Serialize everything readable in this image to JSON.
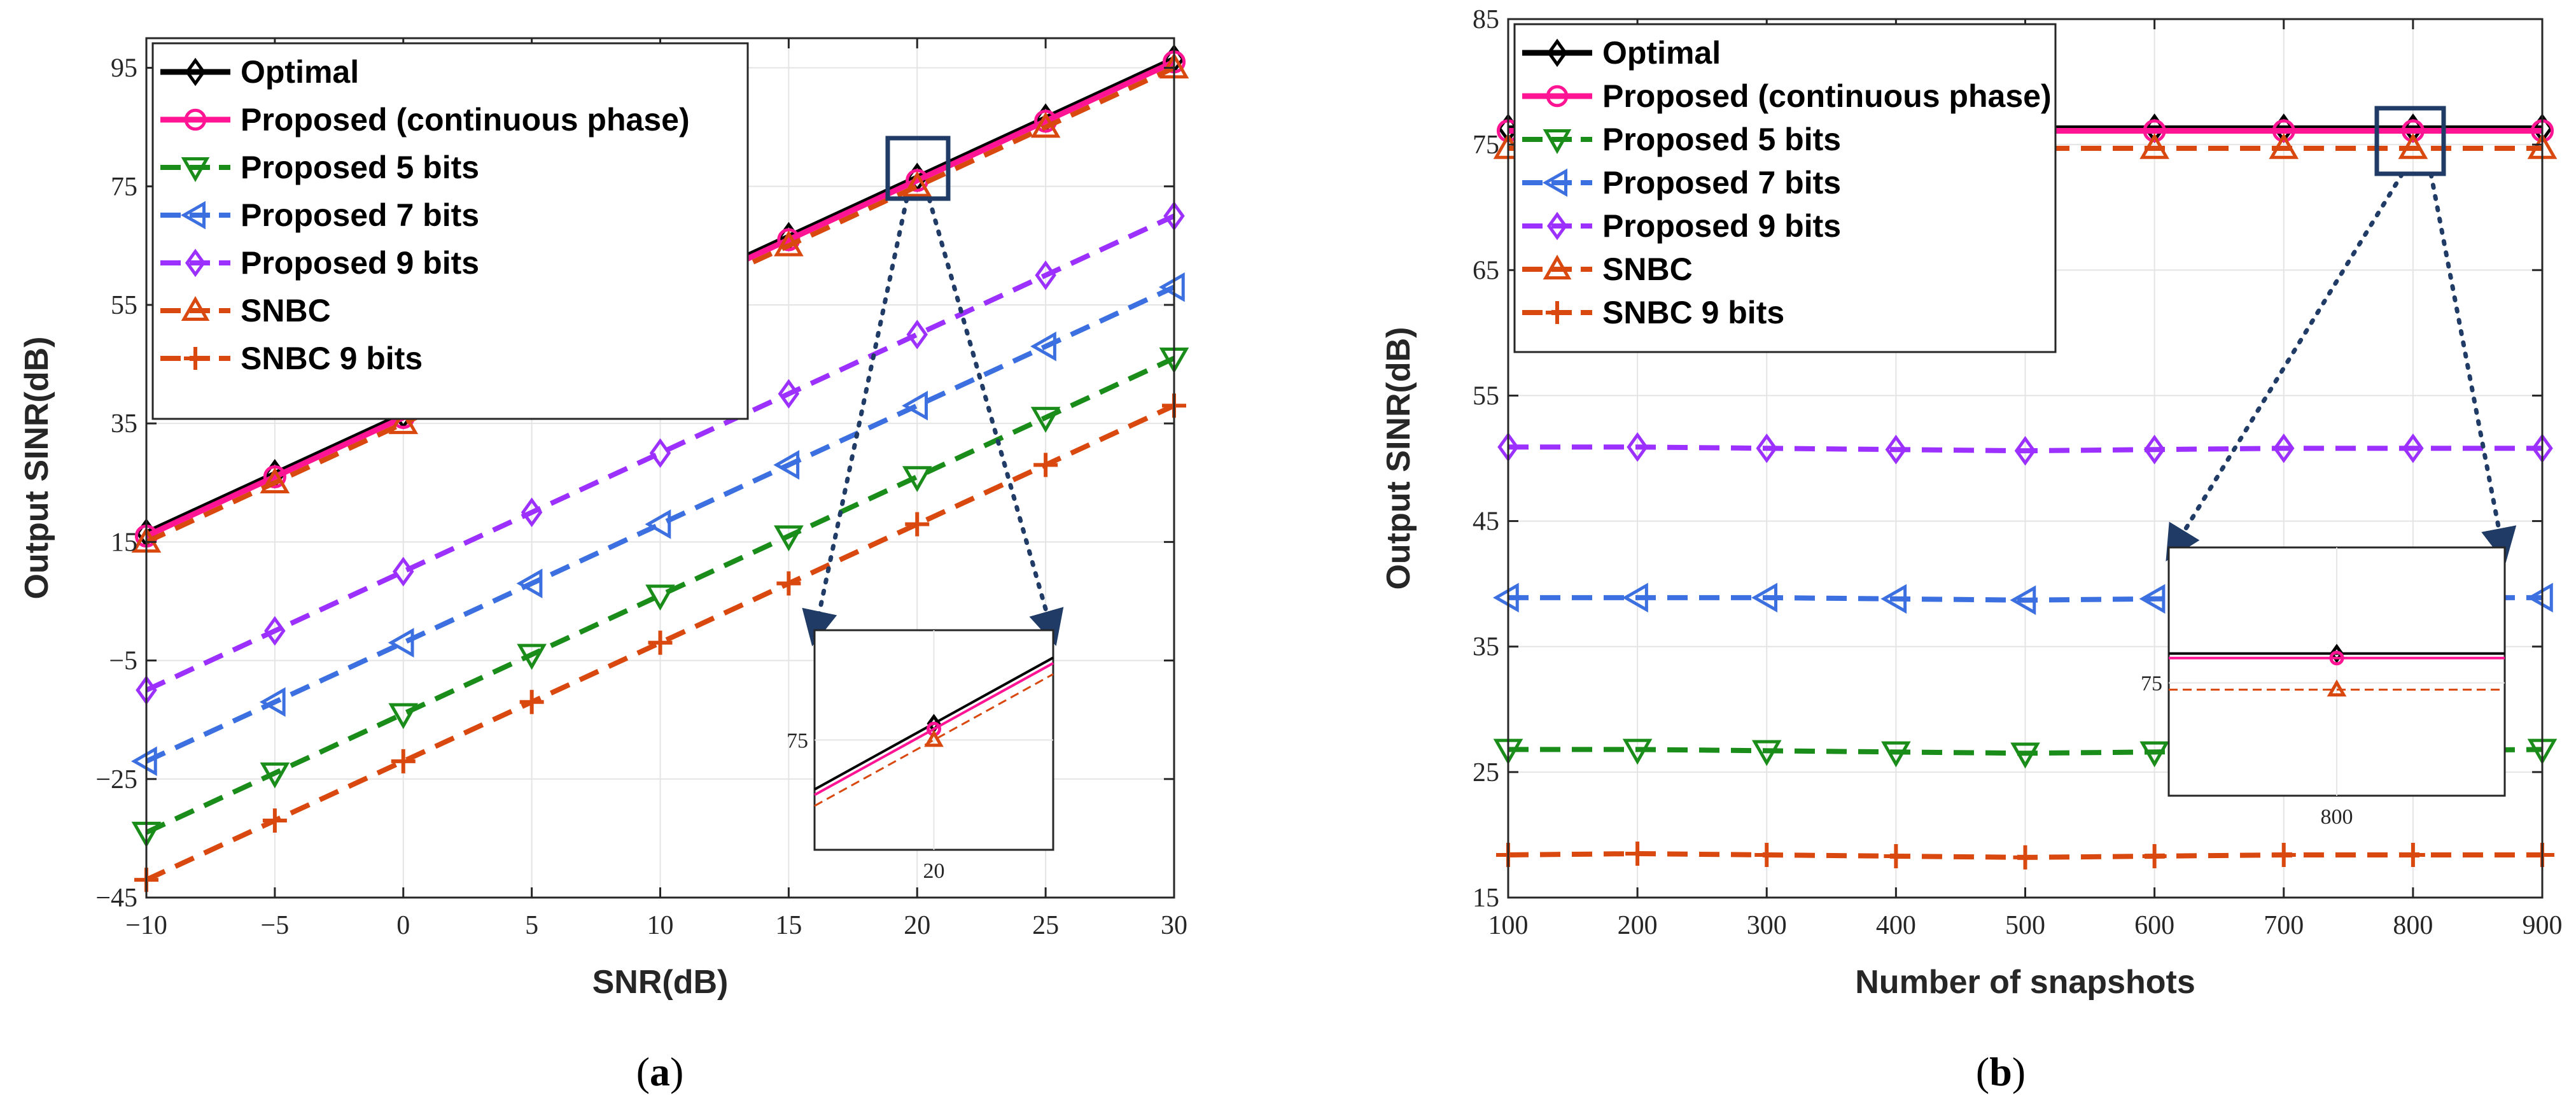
{
  "chart_data": [
    {
      "type": "line",
      "panel": "a",
      "caption_letter": "a",
      "caption_left": "(",
      "caption_right": ")",
      "xlabel": "SNR(dB)",
      "ylabel": "Output SINR(dB)",
      "xlim": [
        -10,
        30
      ],
      "ylim": [
        -45,
        100
      ],
      "xticks": [
        -10,
        -5,
        0,
        5,
        10,
        15,
        20,
        25,
        30
      ],
      "yticks": [
        -45,
        -25,
        -5,
        15,
        35,
        55,
        75,
        95
      ],
      "xtick_labels": [
        "−10",
        "−5",
        "0",
        "5",
        "10",
        "15",
        "20",
        "25",
        "30"
      ],
      "ytick_labels": [
        "−45",
        "−25",
        "−5",
        "15",
        "35",
        "55",
        "75",
        "95"
      ],
      "grid": true,
      "legend_position": "top-left",
      "x": [
        -10,
        -5,
        0,
        5,
        10,
        15,
        20,
        25,
        30
      ],
      "series": [
        {
          "name": "Optimal",
          "color": "#000000",
          "dashed": false,
          "marker": "diamond",
          "values": [
            16.5,
            26.5,
            36.5,
            46.5,
            56.5,
            66.5,
            76.5,
            86.5,
            96.5
          ]
        },
        {
          "name": "Proposed (continuous phase)",
          "color": "#ff1493",
          "dashed": false,
          "marker": "circle",
          "values": [
            16,
            26,
            36,
            46,
            56,
            66,
            76,
            86,
            96
          ]
        },
        {
          "name": "Proposed 5 bits",
          "color": "#1a8c1a",
          "dashed": true,
          "marker": "triangle-down",
          "values": [
            -34,
            -24,
            -14,
            -4,
            6,
            16,
            26,
            36,
            46
          ]
        },
        {
          "name": "Proposed 7 bits",
          "color": "#3c6fe0",
          "dashed": true,
          "marker": "triangle-left",
          "values": [
            -22,
            -12,
            -2,
            8,
            18,
            28,
            38,
            48,
            58
          ]
        },
        {
          "name": "Proposed 9 bits",
          "color": "#9b30ff",
          "dashed": true,
          "marker": "diamond",
          "values": [
            -10,
            0,
            10,
            20,
            30,
            40,
            50,
            60,
            70
          ]
        },
        {
          "name": "SNBC",
          "color": "#d9480f",
          "dashed": true,
          "marker": "triangle-up",
          "values": [
            15,
            25,
            35,
            45,
            55,
            65,
            75,
            85,
            95
          ]
        },
        {
          "name": "SNBC 9 bits",
          "color": "#d9480f",
          "dashed": true,
          "marker": "plus",
          "values": [
            -42,
            -32,
            -22,
            -12,
            -2,
            8,
            18,
            28,
            38
          ]
        }
      ],
      "inset": {
        "xtick": "20",
        "ytick": "75",
        "x_value": 20,
        "y_value": 75
      }
    },
    {
      "type": "line",
      "panel": "b",
      "caption_letter": "b",
      "caption_left": "(",
      "caption_right": ")",
      "xlabel": "Number of snapshots",
      "ylabel": "Output SINR(dB)",
      "xlim": [
        100,
        900
      ],
      "ylim": [
        15,
        85
      ],
      "xticks": [
        100,
        200,
        300,
        400,
        500,
        600,
        700,
        800,
        900
      ],
      "yticks": [
        15,
        25,
        35,
        45,
        55,
        65,
        75,
        85
      ],
      "xtick_labels": [
        "100",
        "200",
        "300",
        "400",
        "500",
        "600",
        "700",
        "800",
        "900"
      ],
      "ytick_labels": [
        "15",
        "25",
        "35",
        "45",
        "55",
        "65",
        "75",
        "85"
      ],
      "grid": true,
      "legend_position": "top-left",
      "x": [
        100,
        200,
        300,
        400,
        500,
        600,
        700,
        800,
        900
      ],
      "series": [
        {
          "name": "Optimal",
          "color": "#000000",
          "dashed": false,
          "marker": "diamond",
          "values": [
            76.3,
            76.3,
            76.3,
            76.3,
            76.3,
            76.3,
            76.3,
            76.3,
            76.3
          ]
        },
        {
          "name": "Proposed (continuous phase)",
          "color": "#ff1493",
          "dashed": false,
          "marker": "circle",
          "values": [
            76.1,
            76.1,
            76.1,
            76.1,
            76.1,
            76.1,
            76.1,
            76.1,
            76.1
          ]
        },
        {
          "name": "Proposed 5 bits",
          "color": "#1a8c1a",
          "dashed": true,
          "marker": "triangle-down",
          "values": [
            26.8,
            26.8,
            26.7,
            26.6,
            26.5,
            26.6,
            26.7,
            26.7,
            26.8
          ]
        },
        {
          "name": "Proposed 7 bits",
          "color": "#3c6fe0",
          "dashed": true,
          "marker": "triangle-left",
          "values": [
            38.9,
            38.9,
            38.9,
            38.8,
            38.7,
            38.8,
            38.9,
            38.9,
            38.9
          ]
        },
        {
          "name": "Proposed 9 bits",
          "color": "#9b30ff",
          "dashed": true,
          "marker": "diamond",
          "values": [
            50.9,
            50.9,
            50.8,
            50.7,
            50.6,
            50.7,
            50.8,
            50.8,
            50.8
          ]
        },
        {
          "name": "SNBC",
          "color": "#d9480f",
          "dashed": true,
          "marker": "triangle-up",
          "values": [
            74.7,
            74.7,
            74.7,
            74.7,
            74.7,
            74.7,
            74.7,
            74.7,
            74.7
          ]
        },
        {
          "name": "SNBC 9 bits",
          "color": "#d9480f",
          "dashed": true,
          "marker": "plus",
          "values": [
            18.4,
            18.5,
            18.4,
            18.3,
            18.2,
            18.3,
            18.4,
            18.4,
            18.4
          ]
        }
      ],
      "inset": {
        "xtick": "800",
        "ytick": "75",
        "x_value": 800,
        "y_value": 75
      }
    }
  ]
}
